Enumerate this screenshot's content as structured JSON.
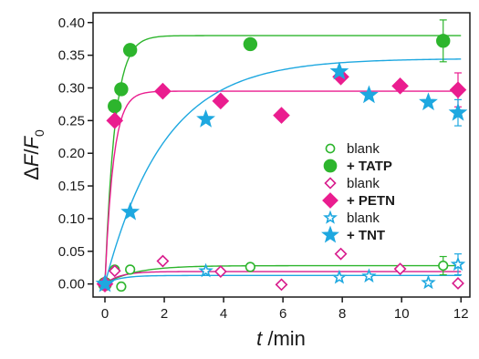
{
  "chart_data": {
    "type": "scatter",
    "xlabel_italic": "t",
    "xlabel_rest": " /min",
    "ylabel_delta": "Δ",
    "ylabel_f": "F",
    "ylabel_slash": "/",
    "ylabel_f0": "F",
    "ylabel_sub": "0",
    "xlim": [
      -0.4,
      12.3
    ],
    "ylim": [
      -0.02,
      0.415
    ],
    "x_ticks": [
      0,
      2,
      4,
      6,
      8,
      10,
      12
    ],
    "x_tick_labels": [
      "0",
      "2",
      "4",
      "6",
      "8",
      "10",
      "12"
    ],
    "y_ticks": [
      0.0,
      0.05,
      0.1,
      0.15,
      0.2,
      0.25,
      0.3,
      0.35,
      0.4
    ],
    "y_tick_labels": [
      "0.00",
      "0.05",
      "0.10",
      "0.15",
      "0.20",
      "0.25",
      "0.30",
      "0.35",
      "0.40"
    ],
    "grid": false,
    "legend_position": "right",
    "series": [
      {
        "name": "blank",
        "marker": "circle",
        "filled": false,
        "color": "#2db52d",
        "bold": false,
        "x": [
          0,
          0.33,
          0.55,
          0.85,
          4.9,
          11.4
        ],
        "y": [
          0.0,
          0.022,
          -0.004,
          0.022,
          0.026,
          0.028
        ],
        "errors": [
          0,
          0,
          0,
          0,
          0,
          0.014
        ],
        "fit": {
          "plateau": 0.028,
          "k": 1.0
        }
      },
      {
        "name": "+ TATP",
        "marker": "circle",
        "filled": true,
        "color": "#2db52d",
        "bold": true,
        "x": [
          0,
          0.33,
          0.55,
          0.85,
          4.9,
          11.4
        ],
        "y": [
          0.0,
          0.272,
          0.298,
          0.358,
          0.367,
          0.372
        ],
        "errors": [
          0,
          0,
          0,
          0,
          0,
          0.032
        ],
        "fit": {
          "plateau": 0.38,
          "k": 3.0
        }
      },
      {
        "name": "blank",
        "marker": "diamond",
        "filled": false,
        "color": "#d81b8c",
        "bold": false,
        "x": [
          0,
          0.33,
          1.95,
          3.9,
          5.95,
          7.95,
          9.95,
          11.9
        ],
        "y": [
          0.0,
          0.02,
          0.035,
          0.019,
          -0.001,
          0.046,
          0.023,
          0.001
        ],
        "errors": [
          0,
          0,
          0,
          0,
          0,
          0,
          0,
          0
        ],
        "fit": {
          "plateau": 0.019,
          "k": 2.0
        }
      },
      {
        "name": "+ PETN",
        "marker": "diamond",
        "filled": true,
        "color": "#ea1d8f",
        "bold": true,
        "x": [
          0,
          0.33,
          1.95,
          3.9,
          5.95,
          7.95,
          9.95,
          11.9
        ],
        "y": [
          0.0,
          0.25,
          0.295,
          0.28,
          0.258,
          0.317,
          0.303,
          0.297
        ],
        "errors": [
          0,
          0,
          0,
          0,
          0,
          0,
          0,
          0.026
        ],
        "fit": {
          "plateau": 0.295,
          "k": 3.5
        }
      },
      {
        "name": "blank",
        "marker": "star",
        "filled": false,
        "color": "#1ea8e0",
        "bold": false,
        "x": [
          0,
          3.4,
          7.9,
          8.9,
          10.9,
          11.9
        ],
        "y": [
          0.0,
          0.02,
          0.01,
          0.012,
          0.002,
          0.03
        ],
        "errors": [
          0,
          0,
          0,
          0,
          0,
          0.016
        ],
        "fit": {
          "plateau": 0.013,
          "k": 2.0
        }
      },
      {
        "name": "+ TNT",
        "marker": "star",
        "filled": true,
        "color": "#1ea8e0",
        "bold": true,
        "x": [
          0,
          0.85,
          3.4,
          7.9,
          8.9,
          10.9,
          11.9
        ],
        "y": [
          0.0,
          0.11,
          0.252,
          0.325,
          0.289,
          0.278,
          0.262
        ],
        "errors": [
          0,
          0,
          0,
          0,
          0,
          0,
          0.02
        ],
        "fit": {
          "plateau": 0.345,
          "k": 0.5
        }
      }
    ]
  }
}
